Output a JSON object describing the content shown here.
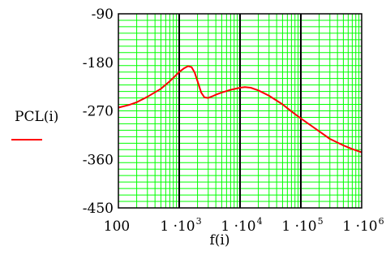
{
  "chart_data": {
    "type": "line",
    "title": "",
    "xlabel": "f(i)",
    "ylabel": "PCL(i)",
    "x_scale": "log",
    "xlim": [
      100,
      1000000
    ],
    "ylim": [
      -450,
      -90
    ],
    "grid": true,
    "x_ticks": [
      {
        "value": 100,
        "base": "100",
        "exp": ""
      },
      {
        "value": 1000,
        "base": "1 ·10",
        "exp": "3"
      },
      {
        "value": 10000,
        "base": "1 ·10",
        "exp": "4"
      },
      {
        "value": 100000,
        "base": "1 ·10",
        "exp": "5"
      },
      {
        "value": 1000000,
        "base": "1 ·10",
        "exp": "6"
      }
    ],
    "y_ticks": [
      {
        "value": -90,
        "label": "-90"
      },
      {
        "value": -180,
        "label": "-180"
      },
      {
        "value": -270,
        "label": "-270"
      },
      {
        "value": -360,
        "label": "-360"
      },
      {
        "value": -450,
        "label": "-450"
      }
    ],
    "series": [
      {
        "color": "#ff0000",
        "x": [
          100,
          150,
          200,
          300,
          500,
          700,
          1000,
          1200,
          1400,
          1600,
          1800,
          2000,
          2300,
          2600,
          3000,
          3500,
          4000,
          5000,
          7000,
          10000,
          12000,
          15000,
          20000,
          30000,
          50000,
          70000,
          100000,
          200000,
          300000,
          500000,
          700000,
          1000000
        ],
        "y": [
          -264,
          -259,
          -254,
          -244,
          -229,
          -215,
          -198,
          -191,
          -187,
          -189,
          -199,
          -215,
          -236,
          -245,
          -246,
          -243,
          -240,
          -236,
          -231,
          -227,
          -226,
          -227,
          -232,
          -242,
          -258,
          -271,
          -284,
          -308,
          -322,
          -334,
          -341,
          -347
        ]
      }
    ]
  },
  "colors": {
    "grid": "#00ff00",
    "major_grid": "#000000",
    "curve": "#ff0000",
    "frame": "#000000"
  }
}
